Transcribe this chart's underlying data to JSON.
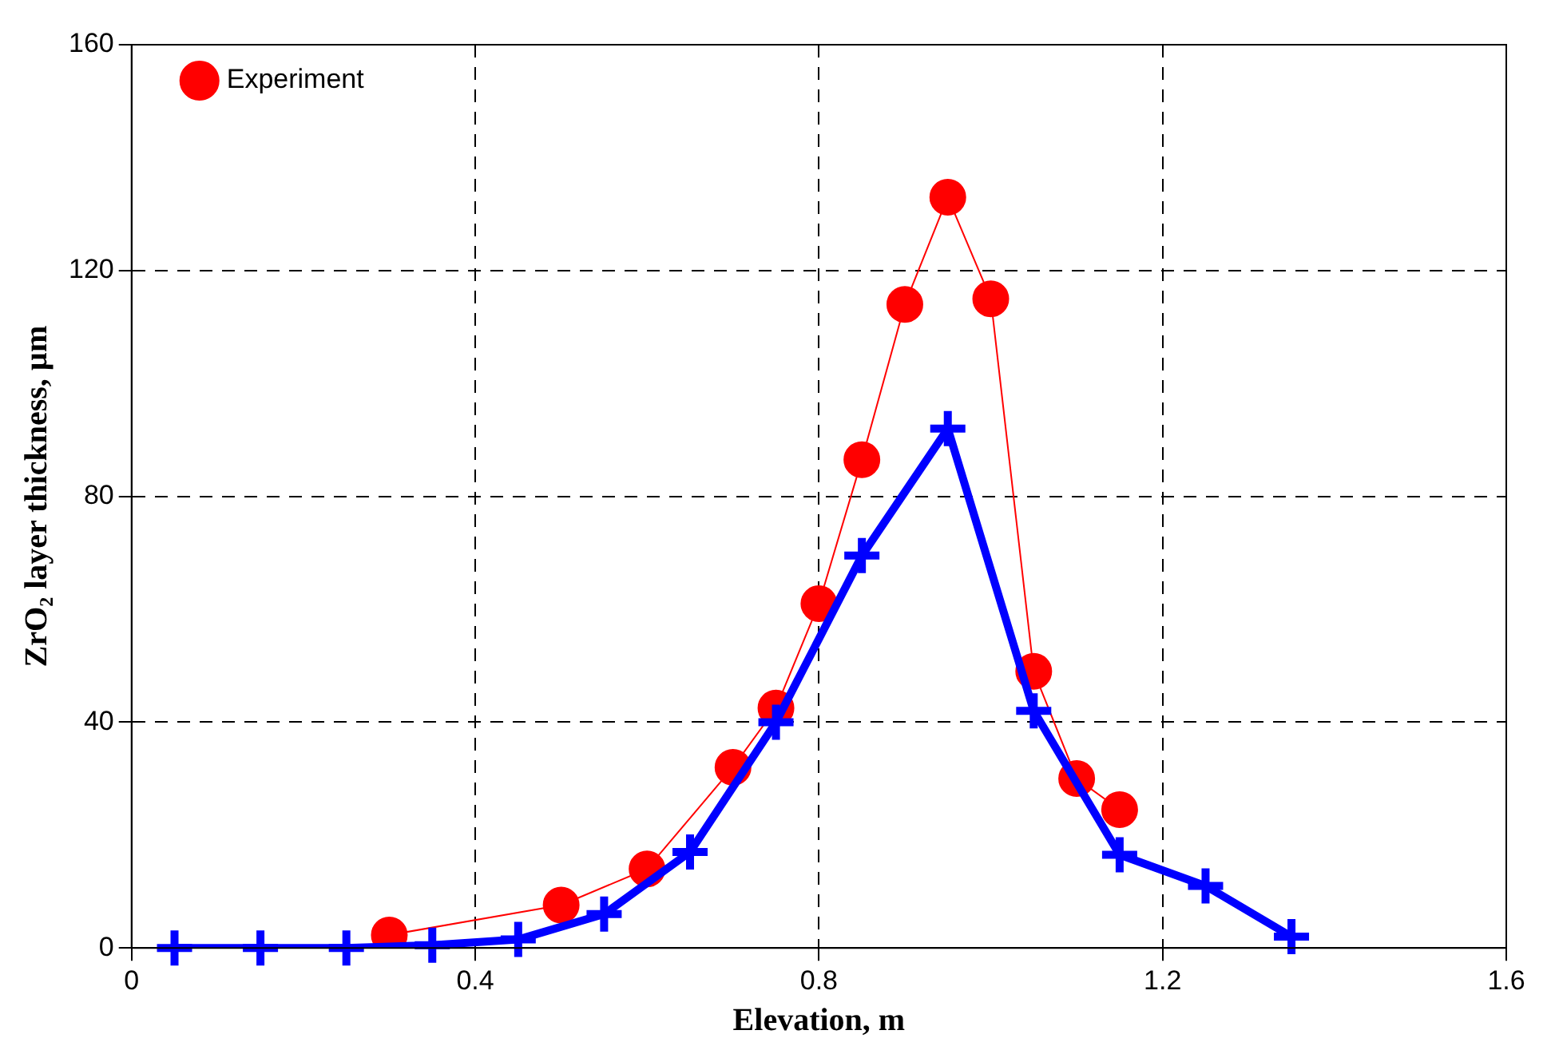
{
  "chart_data": {
    "type": "line",
    "xlabel": "Elevation, m",
    "ylabel": "ZrO₂ layer thickness, µm",
    "xlim": [
      0,
      1.6
    ],
    "xticks": [
      0,
      0.4,
      0.8,
      1.2,
      1.6
    ],
    "ylim": [
      0,
      160
    ],
    "yticks": [
      0,
      40,
      80,
      120,
      160
    ],
    "grid": true,
    "legend": "top left",
    "series": [
      {
        "name": "Experiment",
        "color": "#ff0000",
        "marker": "circle",
        "x": [
          0.3,
          0.5,
          0.6,
          0.7,
          0.75,
          0.8,
          0.85,
          0.9,
          0.95,
          1.0,
          1.05,
          1.1,
          1.15
        ],
        "values": [
          2.3,
          7.6,
          14,
          32,
          42.5,
          61,
          86.5,
          114,
          133,
          115,
          49,
          30,
          24.5
        ]
      },
      {
        "color": "#0000ff",
        "marker": "cross",
        "x": [
          0.05,
          0.15,
          0.25,
          0.35,
          0.45,
          0.55,
          0.65,
          0.75,
          0.85,
          0.95,
          1.05,
          1.15,
          1.25,
          1.35
        ],
        "values": [
          0,
          0,
          0,
          0.5,
          1.5,
          6,
          17,
          40,
          69.5,
          92,
          42,
          16.5,
          11,
          2
        ]
      }
    ]
  }
}
